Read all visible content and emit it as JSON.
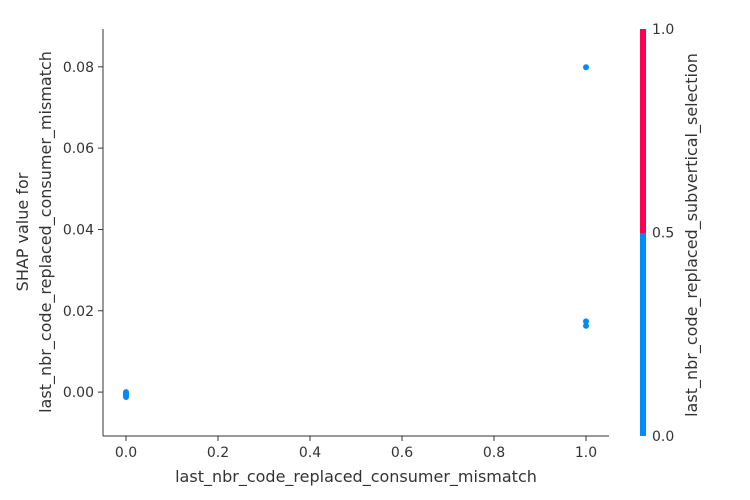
{
  "chart_data": {
    "type": "scatter",
    "title": "",
    "xlabel": "last_nbr_code_replaced_consumer_mismatch",
    "ylabel_lines": [
      "SHAP value for",
      "last_nbr_code_replaced_consumer_mismatch"
    ],
    "xlim": [
      -0.05,
      1.05
    ],
    "ylim": [
      -0.0108,
      0.0893
    ],
    "x_ticks": [
      0.0,
      0.2,
      0.4,
      0.6,
      0.8,
      1.0
    ],
    "x_tick_labels": [
      "0.0",
      "0.2",
      "0.4",
      "0.6",
      "0.8",
      "1.0"
    ],
    "y_ticks": [
      0.0,
      0.02,
      0.04,
      0.06,
      0.08
    ],
    "y_tick_labels": [
      "0.00",
      "0.02",
      "0.04",
      "0.06",
      "0.08"
    ],
    "grid": false,
    "points": [
      {
        "x": 0.0,
        "y": 0.0
      },
      {
        "x": 0.0,
        "y": -0.0003
      },
      {
        "x": 0.0,
        "y": -0.0006
      },
      {
        "x": 0.0,
        "y": -0.0009
      },
      {
        "x": 0.0,
        "y": -0.0012
      },
      {
        "x": 1.0,
        "y": 0.0799
      },
      {
        "x": 1.0,
        "y": 0.0174
      },
      {
        "x": 1.0,
        "y": 0.0163
      }
    ],
    "point_color": "#008bfb",
    "colorbar": {
      "label": "last_nbr_code_replaced_subvertical_selection",
      "range": [
        0.0,
        1.0
      ],
      "ticks": [
        0.0,
        0.5,
        1.0
      ],
      "tick_labels": [
        "0.0",
        "0.5",
        "1.0"
      ],
      "low_color": "#008bfb",
      "high_color": "#ff0052"
    }
  }
}
